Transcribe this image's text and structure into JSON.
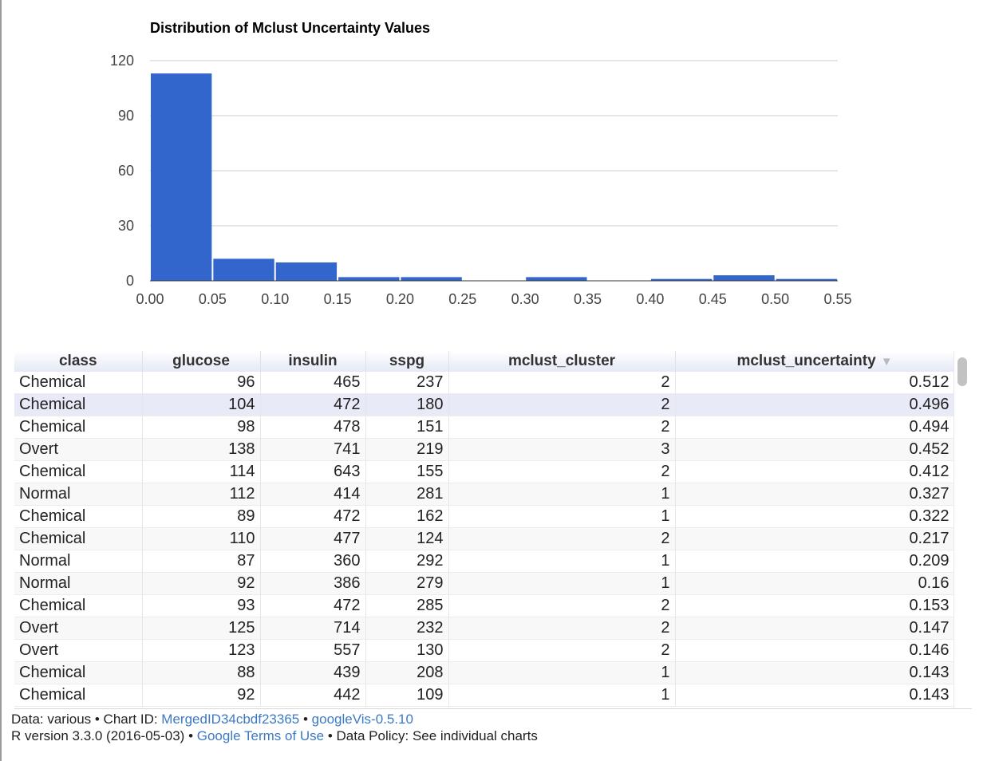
{
  "chart_data": {
    "type": "bar",
    "title": "Distribution of Mclust Uncertainty Values",
    "xlabel": "",
    "ylabel": "",
    "xlim": [
      0,
      0.55
    ],
    "ylim": [
      0,
      120
    ],
    "xticks": [
      "0.00",
      "0.05",
      "0.10",
      "0.15",
      "0.20",
      "0.25",
      "0.30",
      "0.35",
      "0.40",
      "0.45",
      "0.50",
      "0.55"
    ],
    "yticks": [
      "0",
      "30",
      "60",
      "90",
      "120"
    ],
    "bins": [
      {
        "x0": 0.0,
        "x1": 0.05,
        "count": 113
      },
      {
        "x0": 0.05,
        "x1": 0.1,
        "count": 12
      },
      {
        "x0": 0.1,
        "x1": 0.15,
        "count": 10
      },
      {
        "x0": 0.15,
        "x1": 0.2,
        "count": 2
      },
      {
        "x0": 0.2,
        "x1": 0.25,
        "count": 2
      },
      {
        "x0": 0.25,
        "x1": 0.3,
        "count": 0
      },
      {
        "x0": 0.3,
        "x1": 0.35,
        "count": 2
      },
      {
        "x0": 0.35,
        "x1": 0.4,
        "count": 0
      },
      {
        "x0": 0.4,
        "x1": 0.45,
        "count": 1
      },
      {
        "x0": 0.45,
        "x1": 0.5,
        "count": 3
      },
      {
        "x0": 0.5,
        "x1": 0.55,
        "count": 1
      }
    ],
    "grid": true,
    "bar_color": "#3366cc"
  },
  "table": {
    "columns": [
      "class",
      "glucose",
      "insulin",
      "sspg",
      "mclust_cluster",
      "mclust_uncertainty"
    ],
    "sorted_column_indicator": "▼",
    "rows": [
      [
        "Chemical",
        "96",
        "465",
        "237",
        "2",
        "0.512"
      ],
      [
        "Chemical",
        "104",
        "472",
        "180",
        "2",
        "0.496"
      ],
      [
        "Chemical",
        "98",
        "478",
        "151",
        "2",
        "0.494"
      ],
      [
        "Overt",
        "138",
        "741",
        "219",
        "3",
        "0.452"
      ],
      [
        "Chemical",
        "114",
        "643",
        "155",
        "2",
        "0.412"
      ],
      [
        "Normal",
        "112",
        "414",
        "281",
        "1",
        "0.327"
      ],
      [
        "Chemical",
        "89",
        "472",
        "162",
        "1",
        "0.322"
      ],
      [
        "Chemical",
        "110",
        "477",
        "124",
        "2",
        "0.217"
      ],
      [
        "Normal",
        "87",
        "360",
        "292",
        "1",
        "0.209"
      ],
      [
        "Normal",
        "92",
        "386",
        "279",
        "1",
        "0.16"
      ],
      [
        "Chemical",
        "93",
        "472",
        "285",
        "2",
        "0.153"
      ],
      [
        "Overt",
        "125",
        "714",
        "232",
        "2",
        "0.147"
      ],
      [
        "Overt",
        "123",
        "557",
        "130",
        "2",
        "0.146"
      ],
      [
        "Chemical",
        "88",
        "439",
        "208",
        "1",
        "0.143"
      ],
      [
        "Chemical",
        "92",
        "442",
        "109",
        "1",
        "0.143"
      ]
    ],
    "highlighted_row": 1
  },
  "footer": {
    "line1_prefix": "Data: various • Chart ID: ",
    "chart_id_link": "MergedID34cbdf23365",
    "sep1": " • ",
    "googlevis_link": "googleVis-0.5.10",
    "line2_prefix": "R version 3.3.0 (2016-05-03) • ",
    "terms_link": "Google Terms of Use",
    "line2_suffix": " • Data Policy: See individual charts"
  }
}
